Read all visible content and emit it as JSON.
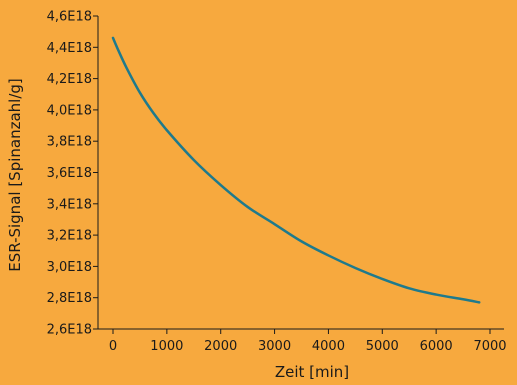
{
  "chart_data": {
    "type": "line",
    "title": "",
    "xlabel": "Zeit [min]",
    "ylabel": "ESR-Signal [Spinanzahl/g]",
    "xlim": [
      0,
      7000
    ],
    "ylim": [
      2.6e+18,
      4.6e+18
    ],
    "x_ticks": [
      0,
      1000,
      2000,
      3000,
      4000,
      5000,
      6000,
      7000
    ],
    "x_tick_labels": [
      "0",
      "1000",
      "2000",
      "3000",
      "4000",
      "5000",
      "6000",
      "7000"
    ],
    "y_ticks": [
      2.6e+18,
      2.8e+18,
      3e+18,
      3.2e+18,
      3.4e+18,
      3.6e+18,
      3.8e+18,
      4e+18,
      4.2e+18,
      4.4e+18,
      4.6e+18
    ],
    "y_tick_labels": [
      "2,6E18",
      "2,8E18",
      "3,0E18",
      "3,2E18",
      "3,4E18",
      "3,6E18",
      "3,8E18",
      "4,0E18",
      "4,2E18",
      "4,4E18",
      "4,6E18"
    ],
    "grid": false,
    "line_color": "#1f7a8c",
    "background_color": "#f7a93e",
    "series": [
      {
        "x": [
          0,
          100,
          250,
          500,
          750,
          1000,
          1500,
          2000,
          2500,
          3000,
          3500,
          4000,
          4500,
          5000,
          5500,
          6000,
          6500,
          6800
        ],
        "y": [
          4.46e+18,
          4.38e+18,
          4.27e+18,
          4.11e+18,
          3.98e+18,
          3.87e+18,
          3.68e+18,
          3.52e+18,
          3.38e+18,
          3.27e+18,
          3.16e+18,
          3.07e+18,
          2.99e+18,
          2.92e+18,
          2.86e+18,
          2.82e+18,
          2.79e+18,
          2.77e+18
        ]
      }
    ]
  }
}
